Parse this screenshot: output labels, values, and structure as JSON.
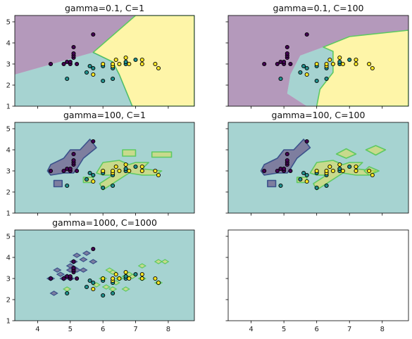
{
  "figure": {
    "colors": {
      "class0": "#440154",
      "class1": "#21908d",
      "class2": "#fde725",
      "region_alpha": 0.4,
      "edge": "#000000",
      "axes": "#000000",
      "contour0": "#3b528b",
      "contour1": "#5ec962"
    }
  },
  "chart_data": [
    {
      "type": "scatter",
      "title": "gamma=0.1, C=1",
      "xlim": [
        3.3,
        8.8
      ],
      "ylim": [
        1.0,
        5.3
      ],
      "xticks": [
        4,
        5,
        6,
        7,
        8
      ],
      "yticks": [
        1,
        2,
        3,
        4,
        5
      ],
      "show_xticklabels": false,
      "show_yticklabels": true,
      "regions": [
        {
          "class": 0,
          "polygon": [
            [
              3.3,
              5.3
            ],
            [
              3.3,
              2.5
            ],
            [
              5.7,
              3.55
            ],
            [
              7.0,
              5.3
            ]
          ]
        },
        {
          "class": 2,
          "polygon": [
            [
              7.0,
              5.3
            ],
            [
              5.7,
              3.55
            ],
            [
              6.3,
              3.1
            ],
            [
              6.5,
              2.5
            ],
            [
              6.9,
              1.0
            ],
            [
              8.8,
              1.0
            ],
            [
              8.8,
              5.3
            ]
          ]
        },
        {
          "class": 1,
          "polygon": [
            [
              3.3,
              2.5
            ],
            [
              5.7,
              3.55
            ],
            [
              6.3,
              3.1
            ],
            [
              6.5,
              2.5
            ],
            [
              6.9,
              1.0
            ],
            [
              3.3,
              1.0
            ]
          ]
        }
      ]
    },
    {
      "type": "scatter",
      "title": "gamma=0.1, C=100",
      "xlim": [
        3.3,
        8.8
      ],
      "ylim": [
        1.0,
        5.3
      ],
      "xticks": [
        4,
        5,
        6,
        7,
        8
      ],
      "yticks": [
        1,
        2,
        3,
        4,
        5
      ],
      "show_xticklabels": false,
      "show_yticklabels": false,
      "regions": [
        {
          "class": 0,
          "polygon": [
            [
              3.3,
              5.3
            ],
            [
              3.3,
              1.0
            ],
            [
              5.7,
              1.0
            ],
            [
              5.1,
              1.6
            ],
            [
              5.2,
              2.5
            ],
            [
              5.5,
              3.4
            ],
            [
              6.2,
              3.8
            ],
            [
              7.0,
              4.3
            ],
            [
              8.8,
              4.6
            ],
            [
              8.8,
              5.3
            ]
          ]
        },
        {
          "class": 1,
          "polygon": [
            [
              5.7,
              1.0
            ],
            [
              5.1,
              1.6
            ],
            [
              5.2,
              2.5
            ],
            [
              5.5,
              3.4
            ],
            [
              6.2,
              3.8
            ],
            [
              6.5,
              3.6
            ],
            [
              6.5,
              2.6
            ],
            [
              6.1,
              1.8
            ],
            [
              6.0,
              1.0
            ]
          ]
        },
        {
          "class": 2,
          "polygon": [
            [
              6.0,
              1.0
            ],
            [
              6.1,
              1.8
            ],
            [
              6.5,
              2.6
            ],
            [
              6.5,
              3.6
            ],
            [
              6.2,
              3.8
            ],
            [
              7.0,
              4.3
            ],
            [
              8.8,
              4.6
            ],
            [
              8.8,
              1.0
            ]
          ]
        }
      ]
    },
    {
      "type": "scatter",
      "title": "gamma=100, C=1",
      "xlim": [
        3.3,
        8.8
      ],
      "ylim": [
        1.0,
        5.3
      ],
      "xticks": [
        4,
        5,
        6,
        7,
        8
      ],
      "yticks": [
        1,
        2,
        3,
        4,
        5
      ],
      "show_xticklabels": false,
      "show_yticklabels": true,
      "regions": [
        {
          "class": 1,
          "polygon": [
            [
              3.3,
              1.0
            ],
            [
              8.8,
              1.0
            ],
            [
              8.8,
              5.3
            ],
            [
              3.3,
              5.3
            ]
          ]
        },
        {
          "class": 0,
          "polygon": [
            [
              4.3,
              3.0
            ],
            [
              4.4,
              3.3
            ],
            [
              4.8,
              3.6
            ],
            [
              5.0,
              4.0
            ],
            [
              5.3,
              4.0
            ],
            [
              5.6,
              4.5
            ],
            [
              5.8,
              4.1
            ],
            [
              5.4,
              3.6
            ],
            [
              5.2,
              3.1
            ],
            [
              5.1,
              2.9
            ],
            [
              4.8,
              2.9
            ],
            [
              4.4,
              2.8
            ]
          ]
        },
        {
          "class": 0,
          "polygon": [
            [
              4.5,
              2.55
            ],
            [
              4.75,
              2.55
            ],
            [
              4.75,
              2.25
            ],
            [
              4.5,
              2.25
            ]
          ]
        },
        {
          "class": 2,
          "polygon": [
            [
              5.8,
              2.9
            ],
            [
              6.0,
              3.4
            ],
            [
              6.5,
              3.5
            ],
            [
              6.8,
              3.3
            ],
            [
              7.0,
              3.4
            ],
            [
              7.4,
              3.4
            ],
            [
              7.2,
              3.1
            ],
            [
              7.8,
              3.0
            ],
            [
              7.6,
              2.8
            ],
            [
              7.2,
              2.8
            ],
            [
              6.8,
              2.9
            ],
            [
              6.6,
              2.7
            ],
            [
              6.2,
              2.3
            ],
            [
              6.0,
              2.1
            ],
            [
              5.9,
              2.4
            ],
            [
              6.3,
              2.8
            ],
            [
              6.0,
              2.8
            ]
          ]
        },
        {
          "class": 2,
          "polygon": [
            [
              7.5,
              3.9
            ],
            [
              8.1,
              3.9
            ],
            [
              8.1,
              3.65
            ],
            [
              7.5,
              3.65
            ]
          ]
        },
        {
          "class": 2,
          "polygon": [
            [
              6.6,
              4.0
            ],
            [
              7.0,
              4.0
            ],
            [
              7.0,
              3.7
            ],
            [
              6.6,
              3.7
            ]
          ]
        },
        {
          "class": 2,
          "polygon": [
            [
              5.4,
              2.7
            ],
            [
              5.7,
              2.7
            ],
            [
              5.7,
              2.45
            ],
            [
              5.4,
              2.45
            ]
          ]
        }
      ]
    },
    {
      "type": "scatter",
      "title": "gamma=100, C=100",
      "xlim": [
        3.3,
        8.8
      ],
      "ylim": [
        1.0,
        5.3
      ],
      "xticks": [
        4,
        5,
        6,
        7,
        8
      ],
      "yticks": [
        1,
        2,
        3,
        4,
        5
      ],
      "show_xticklabels": false,
      "show_yticklabels": false,
      "regions": [
        {
          "class": 1,
          "polygon": [
            [
              3.3,
              1.0
            ],
            [
              8.8,
              1.0
            ],
            [
              8.8,
              5.3
            ],
            [
              3.3,
              5.3
            ]
          ]
        },
        {
          "class": 0,
          "polygon": [
            [
              4.3,
              3.0
            ],
            [
              4.4,
              3.3
            ],
            [
              4.8,
              3.6
            ],
            [
              5.0,
              4.0
            ],
            [
              5.3,
              4.0
            ],
            [
              5.6,
              4.5
            ],
            [
              5.8,
              4.1
            ],
            [
              5.4,
              3.6
            ],
            [
              5.2,
              3.1
            ],
            [
              5.1,
              2.9
            ],
            [
              4.8,
              2.9
            ],
            [
              4.4,
              2.8
            ]
          ]
        },
        {
          "class": 0,
          "polygon": [
            [
              4.5,
              2.55
            ],
            [
              4.75,
              2.55
            ],
            [
              4.75,
              2.25
            ],
            [
              4.5,
              2.25
            ]
          ]
        },
        {
          "class": 2,
          "polygon": [
            [
              5.8,
              2.9
            ],
            [
              6.0,
              3.4
            ],
            [
              6.5,
              3.5
            ],
            [
              6.8,
              3.3
            ],
            [
              7.0,
              3.4
            ],
            [
              7.4,
              3.4
            ],
            [
              7.2,
              3.1
            ],
            [
              7.8,
              3.0
            ],
            [
              7.6,
              2.8
            ],
            [
              7.2,
              2.8
            ],
            [
              6.8,
              2.9
            ],
            [
              6.6,
              2.7
            ],
            [
              6.2,
              2.3
            ],
            [
              6.0,
              2.1
            ],
            [
              5.9,
              2.4
            ],
            [
              6.3,
              2.8
            ],
            [
              6.0,
              2.8
            ]
          ]
        },
        {
          "class": 2,
          "polygon": [
            [
              7.5,
              4.0
            ],
            [
              7.8,
              3.75
            ],
            [
              8.1,
              4.0
            ],
            [
              7.8,
              4.2
            ]
          ]
        },
        {
          "class": 2,
          "polygon": [
            [
              6.6,
              3.8
            ],
            [
              6.9,
              3.6
            ],
            [
              7.2,
              3.8
            ],
            [
              6.9,
              4.05
            ]
          ]
        },
        {
          "class": 2,
          "polygon": [
            [
              5.4,
              2.7
            ],
            [
              5.7,
              2.7
            ],
            [
              5.7,
              2.45
            ],
            [
              5.4,
              2.45
            ]
          ]
        },
        {
          "class": 2,
          "polygon": [
            [
              7.6,
              3.2
            ],
            [
              7.9,
              3.0
            ],
            [
              7.6,
              2.8
            ],
            [
              7.45,
              3.0
            ]
          ]
        }
      ]
    },
    {
      "type": "scatter",
      "title": "gamma=1000, C=1000",
      "xlim": [
        3.3,
        8.8
      ],
      "ylim": [
        1.0,
        5.3
      ],
      "xticks": [
        4,
        5,
        6,
        7,
        8
      ],
      "yticks": [
        1,
        2,
        3,
        4,
        5
      ],
      "show_xticklabels": true,
      "show_yticklabels": true,
      "regions": [
        {
          "class": 1,
          "polygon": [
            [
              3.3,
              1.0
            ],
            [
              8.8,
              1.0
            ],
            [
              8.8,
              5.3
            ],
            [
              3.3,
              5.3
            ]
          ]
        }
      ],
      "blobs": [
        {
          "class": 0,
          "x": 4.4,
          "y": 3.0
        },
        {
          "class": 0,
          "x": 4.6,
          "y": 3.4
        },
        {
          "class": 0,
          "x": 4.7,
          "y": 3.2
        },
        {
          "class": 0,
          "x": 4.8,
          "y": 3.0
        },
        {
          "class": 0,
          "x": 4.9,
          "y": 3.1
        },
        {
          "class": 0,
          "x": 5.0,
          "y": 3.6
        },
        {
          "class": 0,
          "x": 5.0,
          "y": 3.4
        },
        {
          "class": 0,
          "x": 5.1,
          "y": 3.5
        },
        {
          "class": 0,
          "x": 5.1,
          "y": 3.8
        },
        {
          "class": 0,
          "x": 5.2,
          "y": 3.4
        },
        {
          "class": 0,
          "x": 5.4,
          "y": 3.9
        },
        {
          "class": 0,
          "x": 5.4,
          "y": 3.4
        },
        {
          "class": 0,
          "x": 5.5,
          "y": 4.2
        },
        {
          "class": 0,
          "x": 5.7,
          "y": 3.8
        },
        {
          "class": 0,
          "x": 4.5,
          "y": 2.3
        },
        {
          "class": 0,
          "x": 5.0,
          "y": 3.0
        },
        {
          "class": 0,
          "x": 5.2,
          "y": 4.1
        },
        {
          "class": 2,
          "x": 5.8,
          "y": 2.7
        },
        {
          "class": 2,
          "x": 6.0,
          "y": 3.0
        },
        {
          "class": 2,
          "x": 6.3,
          "y": 3.3
        },
        {
          "class": 2,
          "x": 6.4,
          "y": 2.8
        },
        {
          "class": 2,
          "x": 6.5,
          "y": 3.0
        },
        {
          "class": 2,
          "x": 6.7,
          "y": 3.1
        },
        {
          "class": 2,
          "x": 6.9,
          "y": 3.1
        },
        {
          "class": 2,
          "x": 7.2,
          "y": 3.0
        },
        {
          "class": 2,
          "x": 7.7,
          "y": 2.8
        },
        {
          "class": 2,
          "x": 7.2,
          "y": 3.6
        },
        {
          "class": 2,
          "x": 7.7,
          "y": 3.8
        },
        {
          "class": 2,
          "x": 6.3,
          "y": 2.5
        },
        {
          "class": 2,
          "x": 6.1,
          "y": 2.6
        },
        {
          "class": 2,
          "x": 6.2,
          "y": 3.4
        },
        {
          "class": 2,
          "x": 6.8,
          "y": 3.2
        },
        {
          "class": 2,
          "x": 6.7,
          "y": 2.5
        },
        {
          "class": 2,
          "x": 7.9,
          "y": 3.8
        },
        {
          "class": 2,
          "x": 4.9,
          "y": 2.5
        }
      ]
    }
  ],
  "points": [
    {
      "x": 4.4,
      "y": 3.0,
      "class": 0
    },
    {
      "x": 4.8,
      "y": 3.0,
      "class": 0
    },
    {
      "x": 4.9,
      "y": 3.1,
      "class": 0
    },
    {
      "x": 5.0,
      "y": 3.0,
      "class": 0
    },
    {
      "x": 5.0,
      "y": 3.1,
      "class": 0
    },
    {
      "x": 5.1,
      "y": 3.3,
      "class": 0
    },
    {
      "x": 5.1,
      "y": 3.4,
      "class": 0
    },
    {
      "x": 5.1,
      "y": 3.5,
      "class": 0
    },
    {
      "x": 5.1,
      "y": 3.8,
      "class": 0
    },
    {
      "x": 5.2,
      "y": 3.0,
      "class": 0
    },
    {
      "x": 5.7,
      "y": 4.4,
      "class": 0
    },
    {
      "x": 4.9,
      "y": 2.3,
      "class": 1
    },
    {
      "x": 5.5,
      "y": 2.6,
      "class": 1
    },
    {
      "x": 5.6,
      "y": 2.9,
      "class": 1
    },
    {
      "x": 5.7,
      "y": 2.8,
      "class": 1
    },
    {
      "x": 6.0,
      "y": 2.2,
      "class": 1
    },
    {
      "x": 6.0,
      "y": 2.9,
      "class": 1
    },
    {
      "x": 6.3,
      "y": 2.3,
      "class": 1
    },
    {
      "x": 6.3,
      "y": 2.8,
      "class": 1
    },
    {
      "x": 6.7,
      "y": 3.0,
      "class": 1
    },
    {
      "x": 6.7,
      "y": 3.1,
      "class": 1
    },
    {
      "x": 7.0,
      "y": 3.2,
      "class": 1
    },
    {
      "x": 5.7,
      "y": 2.5,
      "class": 2
    },
    {
      "x": 6.0,
      "y": 3.0,
      "class": 2
    },
    {
      "x": 6.3,
      "y": 2.9,
      "class": 2
    },
    {
      "x": 6.3,
      "y": 3.0,
      "class": 2
    },
    {
      "x": 6.4,
      "y": 3.2,
      "class": 2
    },
    {
      "x": 6.5,
      "y": 3.0,
      "class": 2
    },
    {
      "x": 6.7,
      "y": 3.3,
      "class": 2
    },
    {
      "x": 6.8,
      "y": 3.0,
      "class": 2
    },
    {
      "x": 7.2,
      "y": 3.0,
      "class": 2
    },
    {
      "x": 7.2,
      "y": 3.2,
      "class": 2
    },
    {
      "x": 7.6,
      "y": 3.0,
      "class": 2
    },
    {
      "x": 7.7,
      "y": 2.8,
      "class": 2
    }
  ]
}
